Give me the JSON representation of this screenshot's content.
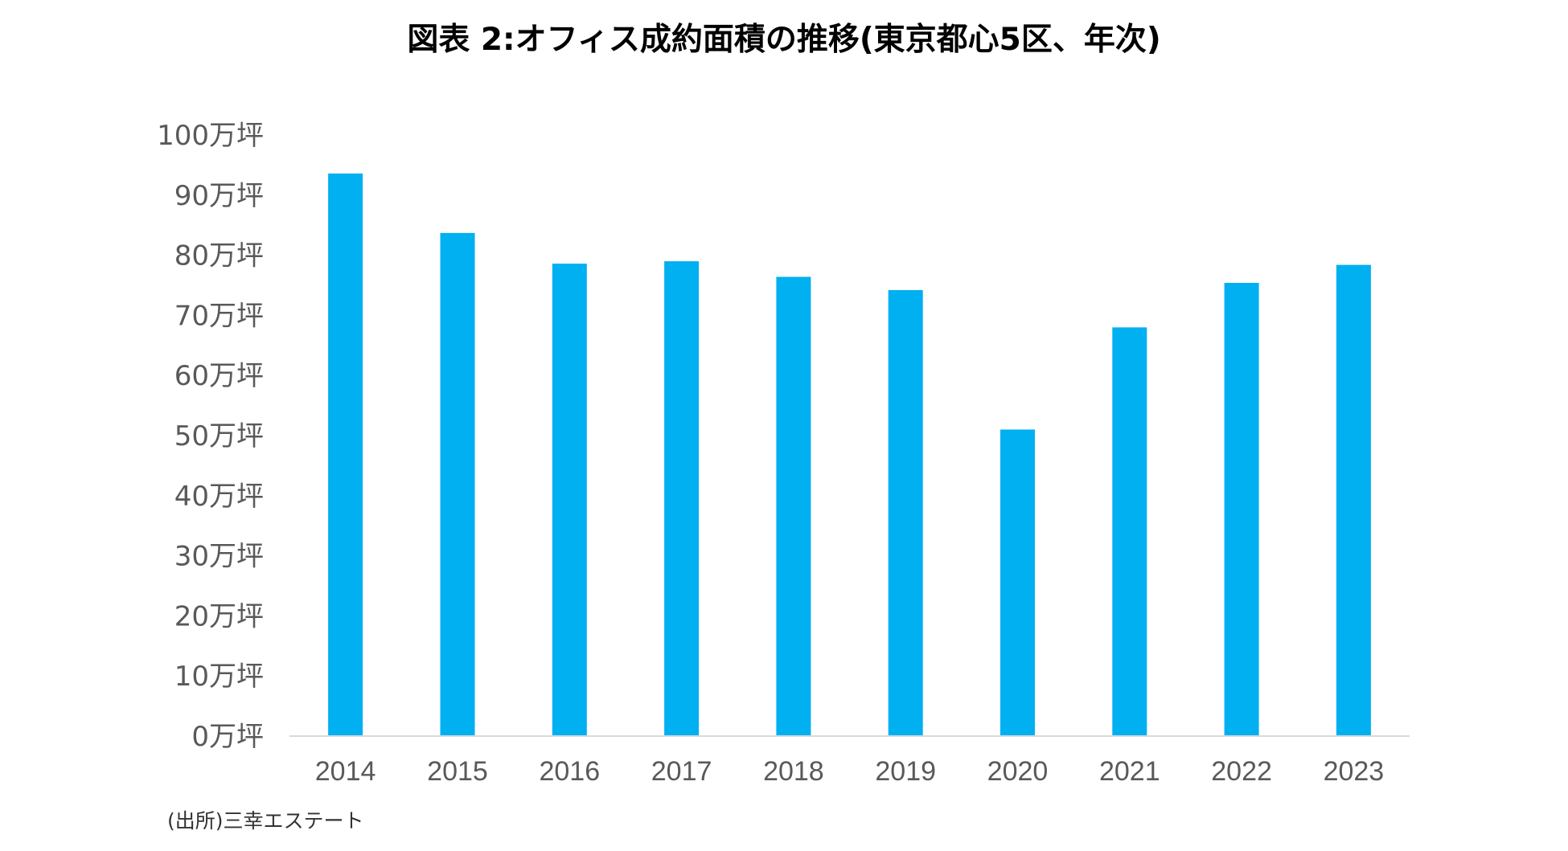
{
  "chart_data": {
    "type": "bar",
    "title": "図表 2:オフィス成約面積の推移(東京都心5区、年次)",
    "xlabel": "",
    "ylabel": "",
    "categories": [
      "2014",
      "2015",
      "2016",
      "2017",
      "2018",
      "2019",
      "2020",
      "2021",
      "2022",
      "2023"
    ],
    "series": [
      {
        "values": [
          93.6,
          83.7,
          78.6,
          79.0,
          76.4,
          74.2,
          51.0,
          68.0,
          75.4,
          78.4
        ]
      }
    ],
    "ylim": [
      0,
      100
    ],
    "y_ticks": [
      {
        "value": 0,
        "label": "0万坪"
      },
      {
        "value": 10,
        "label": "10万坪"
      },
      {
        "value": 20,
        "label": "20万坪"
      },
      {
        "value": 30,
        "label": "30万坪"
      },
      {
        "value": 40,
        "label": "40万坪"
      },
      {
        "value": 50,
        "label": "50万坪"
      },
      {
        "value": 60,
        "label": "60万坪"
      },
      {
        "value": 70,
        "label": "70万坪"
      },
      {
        "value": 80,
        "label": "80万坪"
      },
      {
        "value": 90,
        "label": "90万坪"
      },
      {
        "value": 100,
        "label": "100万坪"
      }
    ],
    "grid": false,
    "legend": "none",
    "bar_color": "#00B0F0",
    "axis_color": "#D9D9D9"
  },
  "source": "(出所)三幸エステート"
}
